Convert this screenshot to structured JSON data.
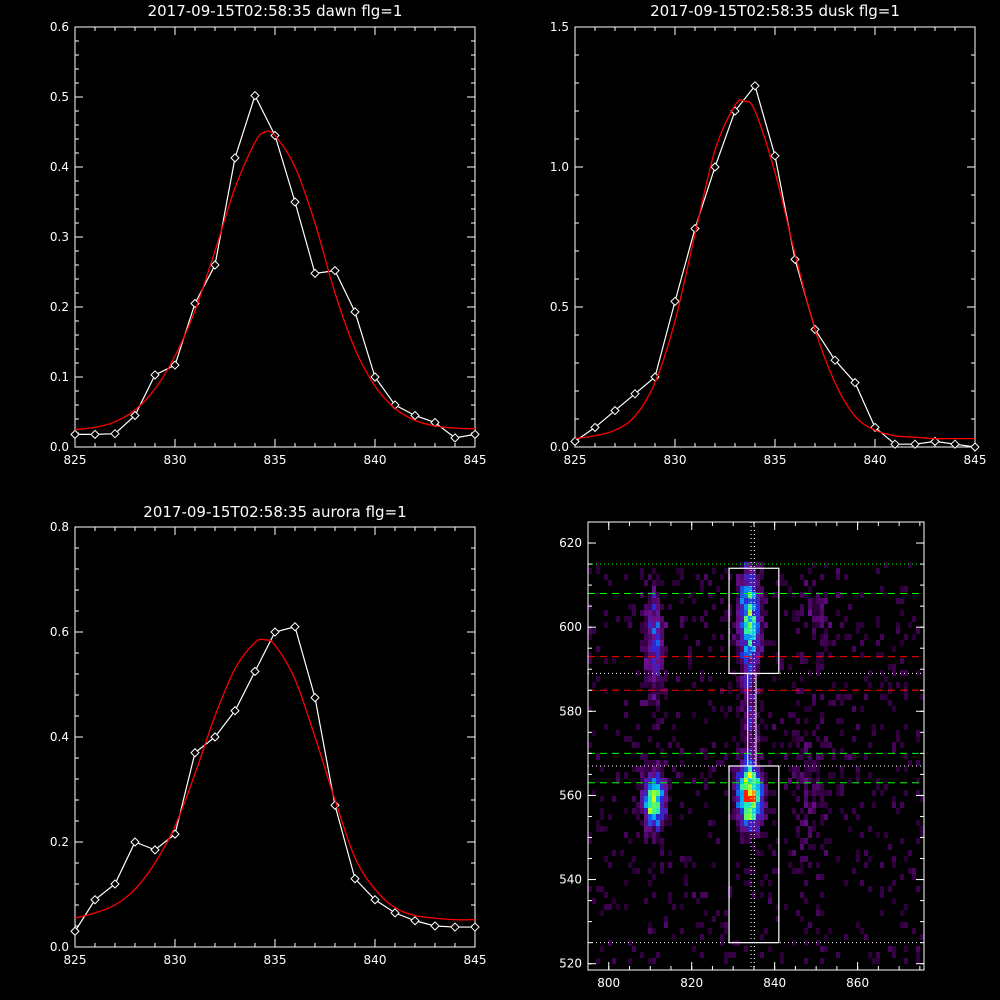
{
  "chart_data": [
    {
      "type": "line",
      "title": "2017-09-15T02:58:35 dawn flg=1",
      "xlim": [
        825,
        845
      ],
      "ylim": [
        0,
        0.6
      ],
      "xticks": [
        825,
        830,
        835,
        840,
        845
      ],
      "xtick_labels": [
        "825",
        "830",
        "835",
        "840",
        "845"
      ],
      "yticks": [
        0.0,
        0.1,
        0.2,
        0.3,
        0.4,
        0.5,
        0.6
      ],
      "ytick_labels": [
        "0.0",
        "0.1",
        "0.2",
        "0.3",
        "0.4",
        "0.5",
        "0.6"
      ],
      "series": [
        {
          "kind": "data",
          "color": "#ffffff",
          "marker": "diamond",
          "x": [
            825,
            826,
            827,
            828,
            829,
            830,
            831,
            832,
            833,
            834,
            835,
            836,
            837,
            838,
            839,
            840,
            841,
            842,
            843,
            844,
            845
          ],
          "y": [
            0.018,
            0.018,
            0.019,
            0.045,
            0.103,
            0.117,
            0.205,
            0.26,
            0.413,
            0.502,
            0.445,
            0.35,
            0.248,
            0.252,
            0.193,
            0.1,
            0.06,
            0.045,
            0.035,
            0.013,
            0.018
          ]
        },
        {
          "kind": "fit",
          "color": "#ff0000",
          "x": [
            825,
            826,
            827,
            828,
            829,
            830,
            831,
            832,
            833,
            834,
            834.5,
            835,
            836,
            837,
            838,
            839,
            840,
            841,
            842,
            843,
            844,
            845
          ],
          "y": [
            0.025,
            0.028,
            0.036,
            0.053,
            0.083,
            0.13,
            0.195,
            0.28,
            0.37,
            0.435,
            0.45,
            0.445,
            0.4,
            0.32,
            0.22,
            0.14,
            0.087,
            0.055,
            0.038,
            0.03,
            0.027,
            0.026
          ]
        }
      ]
    },
    {
      "type": "line",
      "title": "2017-09-15T02:58:35 dusk flg=1",
      "xlim": [
        825,
        845
      ],
      "ylim": [
        0,
        1.5
      ],
      "xticks": [
        825,
        830,
        835,
        840,
        845
      ],
      "xtick_labels": [
        "825",
        "830",
        "835",
        "840",
        "845"
      ],
      "yticks": [
        0.0,
        0.5,
        1.0,
        1.5
      ],
      "ytick_labels": [
        "0.0",
        "0.5",
        "1.0",
        "1.5"
      ],
      "series": [
        {
          "kind": "data",
          "color": "#ffffff",
          "marker": "diamond",
          "x": [
            825,
            826,
            827,
            828,
            829,
            830,
            831,
            832,
            833,
            834,
            835,
            836,
            837,
            838,
            839,
            840,
            841,
            842,
            843,
            844,
            845
          ],
          "y": [
            0.02,
            0.07,
            0.13,
            0.19,
            0.25,
            0.52,
            0.78,
            1.0,
            1.2,
            1.29,
            1.04,
            0.67,
            0.42,
            0.31,
            0.23,
            0.07,
            0.01,
            0.01,
            0.02,
            0.01,
            0.0
          ]
        },
        {
          "kind": "fit",
          "color": "#ff0000",
          "x": [
            825,
            826,
            827,
            828,
            829,
            830,
            831,
            832,
            833,
            833.5,
            834,
            835,
            836,
            837,
            838,
            839,
            840,
            841,
            842,
            843,
            844,
            845
          ],
          "y": [
            0.03,
            0.04,
            0.06,
            0.11,
            0.23,
            0.45,
            0.76,
            1.06,
            1.22,
            1.235,
            1.2,
            0.98,
            0.69,
            0.42,
            0.23,
            0.11,
            0.06,
            0.04,
            0.035,
            0.03,
            0.03,
            0.03
          ]
        }
      ]
    },
    {
      "type": "line",
      "title": "2017-09-15T02:58:35 aurora flg=1",
      "xlim": [
        825,
        845
      ],
      "ylim": [
        0,
        0.8
      ],
      "xticks": [
        825,
        830,
        835,
        840,
        845
      ],
      "xtick_labels": [
        "825",
        "830",
        "835",
        "840",
        "845"
      ],
      "yticks": [
        0.0,
        0.2,
        0.4,
        0.6,
        0.8
      ],
      "ytick_labels": [
        "0.0",
        "0.2",
        "0.4",
        "0.6",
        "0.8"
      ],
      "series": [
        {
          "kind": "data",
          "color": "#ffffff",
          "marker": "diamond",
          "x": [
            825,
            826,
            827,
            828,
            829,
            830,
            831,
            832,
            833,
            834,
            835,
            836,
            837,
            838,
            839,
            840,
            841,
            842,
            843,
            844,
            845
          ],
          "y": [
            0.03,
            0.09,
            0.12,
            0.2,
            0.185,
            0.215,
            0.37,
            0.4,
            0.45,
            0.525,
            0.6,
            0.61,
            0.475,
            0.27,
            0.13,
            0.09,
            0.065,
            0.05,
            0.04,
            0.038,
            0.038
          ]
        },
        {
          "kind": "fit",
          "color": "#ff0000",
          "x": [
            825,
            826,
            827,
            828,
            829,
            830,
            831,
            832,
            833,
            834,
            834.5,
            835,
            836,
            837,
            838,
            839,
            840,
            841,
            842,
            843,
            844,
            845
          ],
          "y": [
            0.055,
            0.065,
            0.08,
            0.11,
            0.16,
            0.23,
            0.33,
            0.44,
            0.53,
            0.58,
            0.585,
            0.575,
            0.51,
            0.4,
            0.28,
            0.17,
            0.11,
            0.075,
            0.06,
            0.055,
            0.052,
            0.052
          ]
        }
      ]
    },
    {
      "type": "heatmap",
      "title": "",
      "xlim": [
        795,
        876
      ],
      "ylim": [
        518.5,
        625
      ],
      "xticks": [
        800,
        820,
        840,
        860
      ],
      "xtick_labels": [
        "800",
        "820",
        "840",
        "860"
      ],
      "yticks": [
        520,
        540,
        560,
        580,
        600,
        620
      ],
      "ytick_labels": [
        "520",
        "540",
        "560",
        "580",
        "600",
        "620"
      ],
      "colormap": [
        "#000000",
        "#3a004a",
        "#6a108f",
        "#2a2ad8",
        "#00a8ff",
        "#20e8c0",
        "#70ff40",
        "#ffff00",
        "#ff2000"
      ],
      "sources": [
        {
          "x": 811,
          "y": 596,
          "sx": 1.6,
          "sy": 9,
          "amp": 0.35
        },
        {
          "x": 811,
          "y": 559,
          "sx": 1.8,
          "sy": 4.5,
          "amp": 0.75
        },
        {
          "x": 834,
          "y": 603,
          "sx": 1.8,
          "sy": 8,
          "amp": 0.6
        },
        {
          "x": 834,
          "y": 560,
          "sx": 2.0,
          "sy": 5,
          "amp": 1.0
        },
        {
          "x": 834,
          "y": 582,
          "sx": 1.2,
          "sy": 10,
          "amp": 0.25
        },
        {
          "x": 848,
          "y": 560,
          "sx": 3,
          "sy": 10,
          "amp": 0.12
        },
        {
          "x": 850,
          "y": 603,
          "sx": 3,
          "sy": 8,
          "amp": 0.1
        }
      ],
      "boxes": [
        {
          "x0": 829,
          "x1": 841,
          "y0": 589,
          "y1": 614,
          "color": "#ffffff"
        },
        {
          "x0": 829,
          "x1": 841,
          "y0": 525,
          "y1": 567,
          "color": "#ffffff"
        }
      ],
      "vlines": [
        {
          "x": 834.3,
          "color": "#ffffff",
          "style": "dotted"
        },
        {
          "x": 835.1,
          "color": "#ffffff",
          "style": "dotted"
        }
      ],
      "hlines": [
        {
          "y": 615,
          "color": "#00ff00",
          "style": "dotted"
        },
        {
          "y": 608,
          "color": "#00ff00",
          "style": "dashed"
        },
        {
          "y": 593,
          "color": "#ff0000",
          "style": "dashed"
        },
        {
          "y": 589,
          "color": "#ffffff",
          "style": "dotted"
        },
        {
          "y": 585,
          "color": "#ff0000",
          "style": "dashed"
        },
        {
          "y": 570,
          "color": "#00ff00",
          "style": "dashed"
        },
        {
          "y": 567,
          "color": "#ffffff",
          "style": "dotted"
        },
        {
          "y": 563,
          "color": "#00ff00",
          "style": "dashed"
        },
        {
          "y": 525,
          "color": "#ffffff",
          "style": "dotted"
        }
      ]
    }
  ]
}
